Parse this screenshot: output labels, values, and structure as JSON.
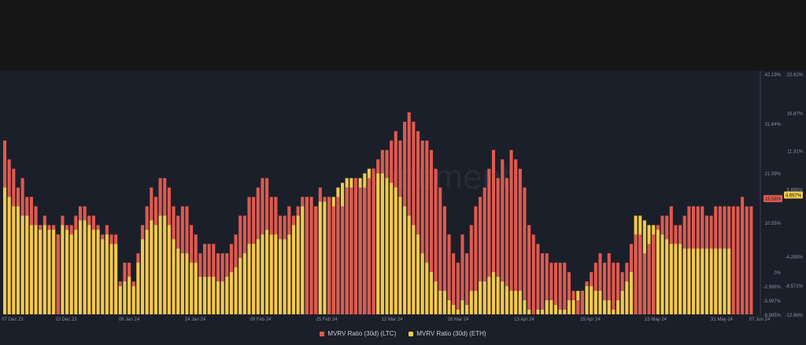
{
  "chart_data": {
    "type": "bar",
    "title": "",
    "watermark": "santiment.",
    "colors": {
      "ltc": "#e05a4f",
      "eth": "#f2c94c",
      "background": "#1b1f2a",
      "grid": "#2b3040",
      "text": "#8b90a0"
    },
    "x_ticks": [
      "07 Dec 23",
      "23 Dec 23",
      "08 Jan 24",
      "24 Jan 24",
      "09 Feb 24",
      "25 Feb 24",
      "12 Mar 24",
      "28 Mar 24",
      "13 Apr 24",
      "29 Apr 24",
      "15 May 24",
      "31 May 24",
      "07 Jun 24"
    ],
    "y_left": {
      "ticks": [
        "42.19%",
        "31.64%",
        "21.09%",
        "10.55%",
        "0%",
        "-2.998%",
        "-5.997%",
        "-8.995%"
      ],
      "ylim": [
        -8.995,
        42.19
      ],
      "current_label": "15.56%"
    },
    "y_right": {
      "ticks": [
        "22.62%",
        "16.87%",
        "11.31%",
        "5.656%",
        "-4.285%",
        "-8.571%",
        "-12.86%"
      ],
      "ylim": [
        -12.86,
        22.62
      ],
      "current_label": "4.697%"
    },
    "legend_position": "bottom-center",
    "series": [
      {
        "name": "MVRV Ratio (30d) (LTC)",
        "color": "#e05a4f",
        "values": [
          28,
          24,
          22,
          18,
          20,
          16,
          16,
          14,
          10,
          12,
          10,
          10,
          8,
          12,
          10,
          10,
          12,
          14,
          14,
          12,
          12,
          10,
          8,
          10,
          8,
          8,
          -2,
          2,
          2,
          -2,
          4,
          10,
          14,
          18,
          16,
          20,
          20,
          18,
          14,
          12,
          14,
          14,
          10,
          8,
          4,
          6,
          6,
          6,
          4,
          4,
          4,
          6,
          8,
          12,
          12,
          16,
          16,
          18,
          20,
          20,
          16,
          16,
          12,
          12,
          14,
          12,
          14,
          16,
          16,
          16,
          14,
          18,
          16,
          16,
          14,
          16,
          14,
          18,
          18,
          20,
          18,
          18,
          20,
          22,
          24,
          26,
          26,
          28,
          30,
          28,
          32,
          34,
          32,
          30,
          28,
          28,
          26,
          22,
          18,
          14,
          8,
          4,
          2,
          8,
          4,
          10,
          14,
          16,
          18,
          22,
          26,
          20,
          24,
          20,
          26,
          24,
          22,
          18,
          10,
          8,
          6,
          4,
          4,
          2,
          2,
          2,
          2,
          0,
          -4,
          -6,
          -4,
          -2,
          0,
          2,
          4,
          2,
          4,
          2,
          2,
          0,
          2,
          6,
          8,
          8,
          4,
          6,
          8,
          10,
          12,
          12,
          14,
          10,
          10,
          12,
          14,
          14,
          14,
          14,
          12,
          12,
          14,
          14,
          14,
          14,
          14,
          14,
          16,
          14,
          14
        ]
      },
      {
        "name": "MVRV Ratio (30d) (ETH)",
        "color": "#f2c94c",
        "values": [
          18,
          16,
          14,
          14,
          12,
          12,
          10,
          10,
          9,
          10,
          9,
          9,
          8,
          10,
          9,
          8,
          9,
          11,
          11,
          10,
          9,
          9,
          7,
          8,
          6,
          6,
          -3,
          -2,
          -1,
          -3,
          2,
          7,
          9,
          11,
          10,
          12,
          12,
          10,
          7,
          5,
          4,
          4,
          2,
          2,
          -1,
          -1,
          -1,
          -1,
          -2,
          -2,
          -1,
          0,
          1,
          3,
          4,
          6,
          6,
          7,
          8,
          9,
          8,
          8,
          7,
          7,
          8,
          10,
          12,
          14,
          16,
          16,
          14,
          15,
          15,
          16,
          16,
          18,
          19,
          20,
          20,
          20,
          20,
          21,
          22,
          22,
          21,
          21,
          20,
          19,
          18,
          16,
          14,
          12,
          10,
          8,
          4,
          2,
          0,
          -2,
          -4,
          -4,
          -6,
          -7,
          -8,
          -6,
          -7,
          -4,
          -4,
          -2,
          -2,
          -1,
          0,
          -1,
          -2,
          -3,
          -4,
          -4,
          -4,
          -6,
          -8,
          -9,
          -8,
          -8,
          -6,
          -6,
          -7,
          -8,
          -8,
          -6,
          -6,
          -4,
          -4,
          -3,
          -3,
          -4,
          -4,
          -6,
          -6,
          -8,
          -6,
          -4,
          -2,
          0,
          12,
          12,
          11,
          10,
          10,
          9,
          8,
          7,
          6,
          6,
          6,
          5,
          5,
          5,
          5,
          5,
          5,
          5,
          5,
          5,
          5,
          5
        ]
      }
    ]
  }
}
